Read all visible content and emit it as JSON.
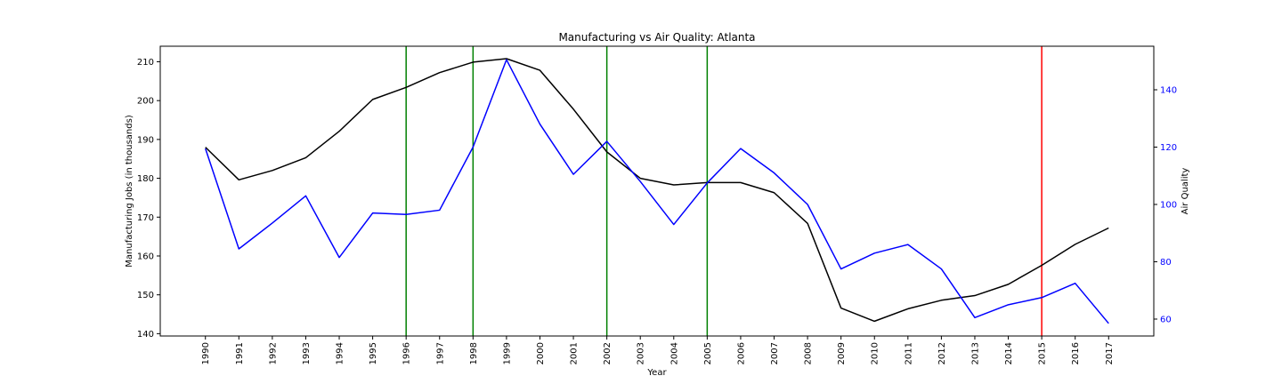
{
  "chart_data": {
    "type": "line",
    "title": "Manufacturing vs Air Quality: Atlanta",
    "xlabel": "Year",
    "ylabel_left": "Manufacturing Jobs (in thousands)",
    "ylabel_right": "Air Quality",
    "x": [
      1990,
      1991,
      1992,
      1993,
      1994,
      1995,
      1996,
      1997,
      1998,
      1999,
      2000,
      2001,
      2002,
      2003,
      2004,
      2005,
      2006,
      2007,
      2008,
      2009,
      2010,
      2011,
      2012,
      2013,
      2014,
      2015,
      2016,
      2017
    ],
    "x_tick_labels": [
      "1990",
      "1991",
      "1992",
      "1993",
      "1994",
      "1995",
      "1996",
      "1997",
      "1998",
      "1999",
      "2000",
      "2001",
      "2002",
      "2003",
      "2004",
      "2005",
      "2006",
      "2007",
      "2008",
      "2009",
      "2010",
      "2011",
      "2012",
      "2013",
      "2014",
      "2015",
      "2016",
      "2017"
    ],
    "xlim": [
      1988.65,
      2018.35
    ],
    "ylim_left": [
      139.4,
      214.0
    ],
    "ylim_right": [
      54.1,
      155.2
    ],
    "yticks_left": [
      140,
      150,
      160,
      170,
      180,
      190,
      200,
      210
    ],
    "yticks_right": [
      60,
      80,
      100,
      120,
      140
    ],
    "series": [
      {
        "axis": "left",
        "color": "#000000",
        "values": [
          188.0,
          179.6,
          182.0,
          185.3,
          192.1,
          200.3,
          203.4,
          207.2,
          209.9,
          210.8,
          207.8,
          197.8,
          186.8,
          180.0,
          178.3,
          178.9,
          178.9,
          176.3,
          168.4,
          146.6,
          143.2,
          146.4,
          148.6,
          149.8,
          152.7,
          157.6,
          163.0,
          167.2
        ]
      },
      {
        "axis": "right",
        "color": "#0000ff",
        "values": [
          119.5,
          84.5,
          93.5,
          103.0,
          81.5,
          97.0,
          96.5,
          98.0,
          120.0,
          150.5,
          128.0,
          110.5,
          122.0,
          108.0,
          93.0,
          107.5,
          119.5,
          111.0,
          100.0,
          77.5,
          83.0,
          86.0,
          77.5,
          60.5,
          65.0,
          67.5,
          72.5,
          58.5
        ]
      }
    ],
    "vertical_lines": [
      {
        "x": 1996,
        "color": "#008000"
      },
      {
        "x": 1998,
        "color": "#008000"
      },
      {
        "x": 2002,
        "color": "#008000"
      },
      {
        "x": 2005,
        "color": "#008000"
      },
      {
        "x": 2015,
        "color": "#ff0000"
      }
    ],
    "right_axis_color": "#0000ff",
    "grid": false,
    "legend": "none"
  }
}
